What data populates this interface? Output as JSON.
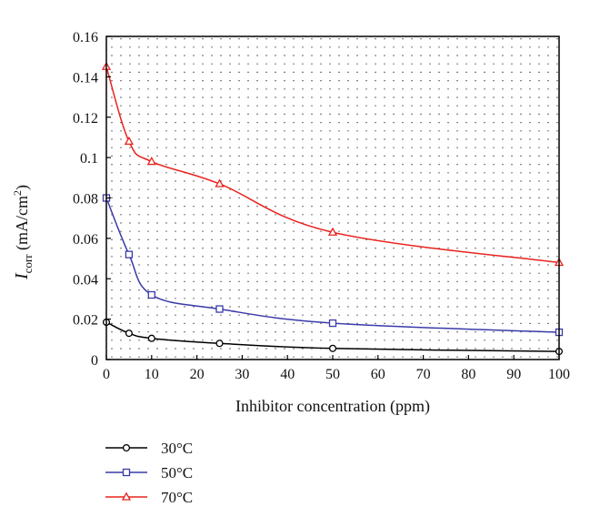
{
  "chart_data": {
    "type": "line",
    "xlabel": "Inhibitor concentration (ppm)",
    "ylabel": {
      "main": "I",
      "sub": "corr",
      "units": "(mA/cm",
      "sup": "2",
      "close": ")"
    },
    "xlim": [
      0,
      100
    ],
    "ylim": [
      0,
      0.16
    ],
    "xticks": [
      "0",
      "10",
      "20",
      "30",
      "40",
      "50",
      "60",
      "70",
      "80",
      "90",
      "100"
    ],
    "yticks": [
      "0",
      "0.02",
      "0.04",
      "0.06",
      "0.08",
      "0.1",
      "0.12",
      "0.14",
      "0.16"
    ],
    "grid": "dotted",
    "legend_position": "bottom-left",
    "x": [
      0,
      5,
      10,
      25,
      50,
      100
    ],
    "series": [
      {
        "name": "30°C",
        "color": "#000000",
        "marker": "circle",
        "values": [
          0.0185,
          0.013,
          0.0105,
          0.008,
          0.0055,
          0.004
        ]
      },
      {
        "name": "50°C",
        "color": "#3a3aa8",
        "marker": "square",
        "values": [
          0.08,
          0.052,
          0.032,
          0.025,
          0.018,
          0.0135
        ]
      },
      {
        "name": "70°C",
        "color": "#e8231e",
        "marker": "triangle",
        "values": [
          0.145,
          0.108,
          0.098,
          0.087,
          0.063,
          0.048
        ]
      }
    ]
  }
}
